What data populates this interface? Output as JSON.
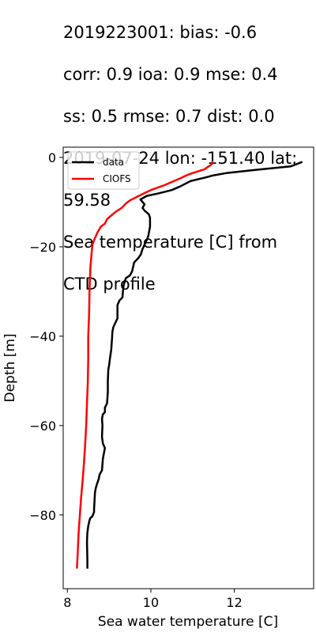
{
  "title_lines": [
    "2019223001: bias: -0.6",
    "corr: 0.9  ioa: 0.9  mse: 0.4",
    "ss: 0.5  rmse: 0.7  dist: 0.0",
    "2019-07-24 lon: -151.40 lat:",
    "59.58",
    "Sea temperature [C] from",
    "CTD profile"
  ],
  "chart_data": {
    "type": "line",
    "title": "2019223001: bias: -0.6 corr: 0.9 ioa: 0.9 mse: 0.4 ss: 0.5 rmse: 0.7 dist: 0.0 2019-07-24 lon: -151.40 lat: 59.58 Sea temperature [C] from CTD profile",
    "xlabel": "Sea water temperature [C]",
    "ylabel": "Depth [m]",
    "xlim": [
      7.9,
      13.9
    ],
    "ylim": [
      -96.5,
      2.3
    ],
    "x_ticks": [
      8,
      10,
      12
    ],
    "x_tick_labels": [
      "8",
      "10",
      "12"
    ],
    "y_ticks": [
      0,
      -20,
      -40,
      -60,
      -80
    ],
    "y_tick_labels": [
      "0",
      "−20",
      "−40",
      "−60",
      "−80"
    ],
    "grid": false,
    "legend_position": "upper-left",
    "series": [
      {
        "name": "data",
        "color": "#000000",
        "points": [
          [
            13.63,
            -1.0
          ],
          [
            13.35,
            -2.0
          ],
          [
            12.5,
            -2.8
          ],
          [
            11.8,
            -3.5
          ],
          [
            11.5,
            -4.0
          ],
          [
            11.3,
            -4.5
          ],
          [
            10.95,
            -5.3
          ],
          [
            10.7,
            -6.5
          ],
          [
            10.5,
            -7.3
          ],
          [
            10.2,
            -8.0
          ],
          [
            9.9,
            -8.6
          ],
          [
            9.75,
            -9.4
          ],
          [
            9.85,
            -10.5
          ],
          [
            9.8,
            -11.3
          ],
          [
            9.85,
            -11.9
          ],
          [
            9.95,
            -12.7
          ],
          [
            9.98,
            -13.5
          ],
          [
            9.98,
            -15.5
          ],
          [
            9.94,
            -17.5
          ],
          [
            9.9,
            -18.5
          ],
          [
            9.85,
            -19.5
          ],
          [
            9.8,
            -20.5
          ],
          [
            9.76,
            -21.7
          ],
          [
            9.7,
            -22.5
          ],
          [
            9.6,
            -23.5
          ],
          [
            9.55,
            -25.5
          ],
          [
            9.5,
            -26.4
          ],
          [
            9.4,
            -27.0
          ],
          [
            9.35,
            -28.5
          ],
          [
            9.33,
            -30.0
          ],
          [
            9.32,
            -31.3
          ],
          [
            9.25,
            -32.0
          ],
          [
            9.2,
            -33.0
          ],
          [
            9.2,
            -36.0
          ],
          [
            9.15,
            -37.0
          ],
          [
            9.1,
            -38.0
          ],
          [
            9.08,
            -39.0
          ],
          [
            9.07,
            -40.5
          ],
          [
            9.05,
            -43.0
          ],
          [
            9.02,
            -45.0
          ],
          [
            9.0,
            -46.5
          ],
          [
            8.98,
            -47.5
          ],
          [
            8.97,
            -50.0
          ],
          [
            8.97,
            -52.5
          ],
          [
            8.95,
            -55.0
          ],
          [
            8.9,
            -56.0
          ],
          [
            8.9,
            -57.0
          ],
          [
            8.85,
            -57.5
          ],
          [
            8.83,
            -58.5
          ],
          [
            8.84,
            -60.0
          ],
          [
            8.83,
            -62.5
          ],
          [
            8.85,
            -64.0
          ],
          [
            8.9,
            -65.0
          ],
          [
            8.87,
            -66.5
          ],
          [
            8.85,
            -67.5
          ],
          [
            8.83,
            -70.0
          ],
          [
            8.77,
            -71.0
          ],
          [
            8.75,
            -72.0
          ],
          [
            8.72,
            -72.8
          ],
          [
            8.68,
            -74.0
          ],
          [
            8.66,
            -75.0
          ],
          [
            8.65,
            -77.0
          ],
          [
            8.64,
            -78.5
          ],
          [
            8.64,
            -79.3
          ],
          [
            8.6,
            -80.3
          ],
          [
            8.55,
            -80.7
          ],
          [
            8.53,
            -81.2
          ],
          [
            8.5,
            -82.5
          ],
          [
            8.48,
            -84.0
          ],
          [
            8.47,
            -86.0
          ],
          [
            8.48,
            -90.0
          ],
          [
            8.48,
            -92.0
          ]
        ]
      },
      {
        "name": "CIOFS",
        "color": "#ff0000",
        "points": [
          [
            11.47,
            -0.8
          ],
          [
            11.48,
            -1.2
          ],
          [
            11.44,
            -1.7
          ],
          [
            11.35,
            -2.2
          ],
          [
            11.3,
            -2.6
          ],
          [
            11.1,
            -3.2
          ],
          [
            10.9,
            -3.8
          ],
          [
            10.7,
            -4.7
          ],
          [
            10.55,
            -5.3
          ],
          [
            10.3,
            -6.3
          ],
          [
            10.0,
            -7.3
          ],
          [
            9.8,
            -8.2
          ],
          [
            9.65,
            -8.9
          ],
          [
            9.5,
            -9.6
          ],
          [
            9.4,
            -10.3
          ],
          [
            9.3,
            -11.3
          ],
          [
            9.18,
            -12.0
          ],
          [
            9.05,
            -13.0
          ],
          [
            8.95,
            -13.8
          ],
          [
            8.9,
            -14.8
          ],
          [
            8.8,
            -15.5
          ],
          [
            8.72,
            -16.8
          ],
          [
            8.65,
            -18.3
          ],
          [
            8.6,
            -19.5
          ],
          [
            8.58,
            -21.5
          ],
          [
            8.55,
            -25.0
          ],
          [
            8.53,
            -30.0
          ],
          [
            8.52,
            -35.0
          ],
          [
            8.5,
            -40.0
          ],
          [
            8.5,
            -45.0
          ],
          [
            8.49,
            -50.0
          ],
          [
            8.47,
            -55.0
          ],
          [
            8.45,
            -60.0
          ],
          [
            8.42,
            -65.0
          ],
          [
            8.4,
            -68.0
          ],
          [
            8.37,
            -72.0
          ],
          [
            8.33,
            -76.0
          ],
          [
            8.3,
            -80.0
          ],
          [
            8.27,
            -84.0
          ],
          [
            8.25,
            -88.0
          ],
          [
            8.23,
            -92.0
          ]
        ]
      }
    ]
  }
}
